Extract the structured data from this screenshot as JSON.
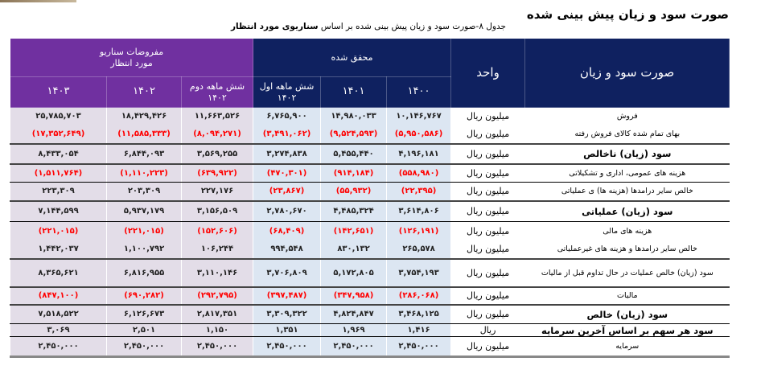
{
  "title": "صورت سود و زیان پیش بینی شده",
  "caption": {
    "prefix": "جدول ۸-صورت سود و زیان پیش بینی شده بر اساس ",
    "bold": "سناریوی مورد انتظار"
  },
  "header": {
    "label_col": "صورت سود و زیان",
    "unit_col": "واحد",
    "actual_group": "محقق شده",
    "scenario_group_line1": "مفروضات سناریو",
    "scenario_group_line2": "مورد انتظار",
    "columns": [
      {
        "line1": "۱۴۰۰",
        "line2": ""
      },
      {
        "line1": "۱۴۰۱",
        "line2": ""
      },
      {
        "line1": "شش ماهه اول",
        "line2": "۱۴۰۲"
      },
      {
        "line1": "شش ماهه دوم",
        "line2": "۱۴۰۲"
      },
      {
        "line1": "۱۴۰۲",
        "line2": ""
      },
      {
        "line1": "۱۴۰۳",
        "line2": ""
      }
    ]
  },
  "colors": {
    "navy": "#0f2160",
    "purple": "#7030a0",
    "negative": "#ff0000",
    "actual_bg": "#dce6f2",
    "scenario_bg": "#e3dde8"
  },
  "rows": [
    {
      "label": "فروش",
      "unit": "میلیون ریال",
      "values": [
        "۱۰,۱۴۶,۷۶۷",
        "۱۴,۹۸۰,۰۳۳",
        "۶,۷۶۵,۹۰۰",
        "۱۱,۶۶۳,۵۲۶",
        "۱۸,۴۲۹,۴۲۶",
        "۲۵,۷۸۵,۷۰۳"
      ]
    },
    {
      "label": "بهای تمام شده کالای فروش رفته",
      "unit": "میلیون ریال",
      "values": [
        "(۵,۹۵۰,۵۸۶)",
        "(۹,۵۲۴,۵۹۳)",
        "(۳,۴۹۱,۰۶۲)",
        "(۸,۰۹۴,۲۷۱)",
        "(۱۱,۵۸۵,۳۳۳)",
        "(۱۷,۳۵۲,۶۴۹)"
      ]
    },
    {
      "label": "سود (زیان) ناخالص",
      "unit": "میلیون ریال",
      "values": [
        "۴,۱۹۶,۱۸۱",
        "۵,۴۵۵,۴۴۰",
        "۳,۲۷۴,۸۳۸",
        "۳,۵۶۹,۲۵۵",
        "۶,۸۴۴,۰۹۳",
        "۸,۴۳۳,۰۵۴"
      ]
    },
    {
      "label": "هزینه های عمومی، اداری و تشکیلاتی",
      "unit": "میلیون ریال",
      "values": [
        "(۵۵۸,۹۸۰)",
        "(۹۱۴,۱۸۴)",
        "(۴۷۰,۳۰۱)",
        "(۶۳۹,۹۲۲)",
        "(۱,۱۱۰,۲۲۳)",
        "(۱,۵۱۱,۷۶۴)"
      ]
    },
    {
      "label": "خالص سایر درامدها (هزینه ها) ی عملیاتی",
      "unit": "میلیون ریال",
      "values": [
        "(۲۲,۳۹۵)",
        "(۵۵,۹۳۲)",
        "(۲۳,۸۶۷)",
        "۲۲۷,۱۷۶",
        "۲۰۳,۳۰۹",
        "۲۲۳,۳۰۹"
      ]
    },
    {
      "label": "سود (زیان) عملیاتی",
      "unit": "میلیون ریال",
      "values": [
        "۳,۶۱۴,۸۰۶",
        "۴,۴۸۵,۳۲۴",
        "۲,۷۸۰,۶۷۰",
        "۳,۱۵۶,۵۰۹",
        "۵,۹۳۷,۱۷۹",
        "۷,۱۴۴,۵۹۹"
      ]
    },
    {
      "label": "هزینه های مالی",
      "unit": "میلیون ریال",
      "values": [
        "(۱۲۶,۱۹۱)",
        "(۱۴۲,۶۵۱)",
        "(۶۸,۴۰۹)",
        "(۱۵۲,۶۰۶)",
        "(۲۲۱,۰۱۵)",
        "(۲۲۱,۰۱۵)"
      ]
    },
    {
      "label": "خالص سایر درامدها و هزینه های غیرعملیاتی",
      "unit": "میلیون ریال",
      "values": [
        "۲۶۵,۵۷۸",
        "۸۳۰,۱۳۲",
        "۹۹۴,۵۴۸",
        "۱۰۶,۲۴۴",
        "۱,۱۰۰,۷۹۲",
        "۱,۴۴۲,۰۳۷"
      ]
    },
    {
      "label": "سود (زیان) خالص عملیات در حال تداوم قبل از مالیات",
      "unit": "میلیون ریال",
      "values": [
        "۳,۷۵۴,۱۹۳",
        "۵,۱۷۲,۸۰۵",
        "۳,۷۰۶,۸۰۹",
        "۳,۱۱۰,۱۴۶",
        "۶,۸۱۶,۹۵۵",
        "۸,۳۶۵,۶۲۱"
      ]
    },
    {
      "label": "مالیات",
      "unit": "میلیون ریال",
      "values": [
        "(۲۸۶,۰۶۸)",
        "(۳۴۷,۹۵۸)",
        "(۳۹۷,۴۸۷)",
        "(۲۹۲,۷۹۵)",
        "(۶۹۰,۲۸۲)",
        "(۸۴۷,۱۰۰)"
      ]
    },
    {
      "label": "سود (زیان) خالص",
      "unit": "میلیون ریال",
      "values": [
        "۳,۴۶۸,۱۲۵",
        "۴,۸۲۴,۸۴۷",
        "۳,۳۰۹,۳۲۲",
        "۲,۸۱۷,۳۵۱",
        "۶,۱۲۶,۶۷۳",
        "۷,۵۱۸,۵۲۲"
      ]
    },
    {
      "label": "سود هر سهم بر اساس آخرین سرمایه",
      "unit": "ریال",
      "values": [
        "۱,۴۱۶",
        "۱,۹۶۹",
        "۱,۳۵۱",
        "۱,۱۵۰",
        "۲,۵۰۱",
        "۳,۰۶۹"
      ]
    },
    {
      "label": "سرمایه",
      "unit": "میلیون ریال",
      "values": [
        "۲,۴۵۰,۰۰۰",
        "۲,۴۵۰,۰۰۰",
        "۲,۴۵۰,۰۰۰",
        "۲,۴۵۰,۰۰۰",
        "۲,۴۵۰,۰۰۰",
        "۲,۴۵۰,۰۰۰"
      ]
    }
  ]
}
